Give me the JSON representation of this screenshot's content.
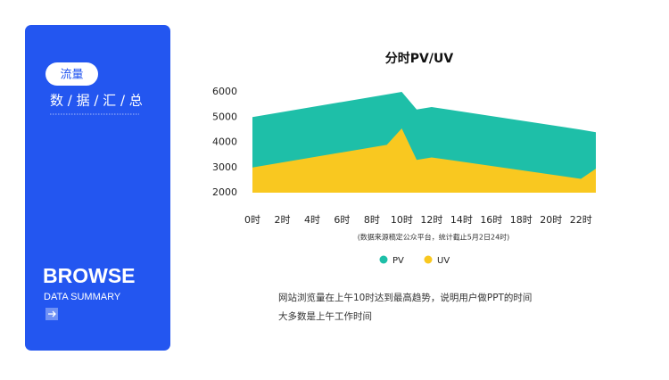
{
  "panel": {
    "tag": "流量",
    "heading": "数 / 据 / 汇 / 总",
    "brand": "BROWSE",
    "brand_sub": "DATA SUMMARY"
  },
  "chart_data": {
    "type": "area",
    "title": "分时PV/UV",
    "note": "(数据来源稿定公众平台，统计截止5月2日24时)",
    "x": [
      0,
      9,
      10,
      11,
      12,
      22,
      23
    ],
    "series": [
      {
        "name": "PV",
        "color": "#1ebfa8",
        "values": [
          5000,
          5900,
          6000,
          5300,
          5400,
          4500,
          4400
        ]
      },
      {
        "name": "UV",
        "color": "#f9c820",
        "values": [
          3000,
          3900,
          4550,
          3300,
          3400,
          2550,
          2950
        ]
      }
    ],
    "xlim": [
      0,
      23
    ],
    "xticks": [
      {
        "value": 0,
        "label": "0时"
      },
      {
        "value": 2,
        "label": "2时"
      },
      {
        "value": 4,
        "label": "4时"
      },
      {
        "value": 6,
        "label": "6时"
      },
      {
        "value": 8,
        "label": "8时"
      },
      {
        "value": 10,
        "label": "10时"
      },
      {
        "value": 12,
        "label": "12时"
      },
      {
        "value": 14,
        "label": "14时"
      },
      {
        "value": 16,
        "label": "16时"
      },
      {
        "value": 18,
        "label": "18时"
      },
      {
        "value": 20,
        "label": "20时"
      },
      {
        "value": 22,
        "label": "22时"
      }
    ],
    "ylim": [
      2000,
      6000
    ],
    "yticks": [
      2000,
      3000,
      4000,
      5000,
      6000
    ],
    "legend": "bottom"
  },
  "description": [
    "网站浏览量在上午10时达到最高趋势，说明用户做PPT的时间",
    "大多数是上午工作时间"
  ]
}
